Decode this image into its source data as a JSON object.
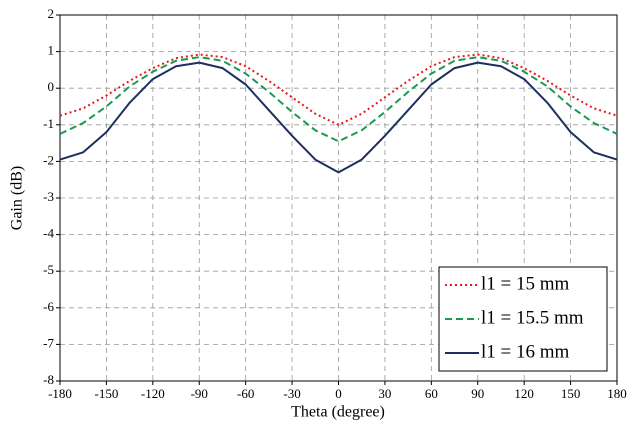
{
  "chart_data": {
    "type": "line",
    "x_label": "Theta (degree)",
    "y_label": "Gain (dB)",
    "x": [
      -180,
      -165,
      -150,
      -135,
      -120,
      -105,
      -90,
      -75,
      -60,
      -45,
      -30,
      -15,
      0,
      15,
      30,
      45,
      60,
      75,
      90,
      105,
      120,
      135,
      150,
      165,
      180
    ],
    "series": [
      {
        "name": "l1 = 15 mm",
        "color": "#e8161a",
        "dash": "2 3",
        "values": [
          -0.75,
          -0.55,
          -0.2,
          0.2,
          0.55,
          0.82,
          0.92,
          0.85,
          0.6,
          0.2,
          -0.25,
          -0.7,
          -1.0,
          -0.7,
          -0.25,
          0.2,
          0.6,
          0.85,
          0.92,
          0.82,
          0.55,
          0.2,
          -0.2,
          -0.55,
          -0.75
        ]
      },
      {
        "name": "l1 = 15.5 mm",
        "color": "#1a9a50",
        "dash": "7 4",
        "values": [
          -1.25,
          -0.95,
          -0.5,
          0.05,
          0.45,
          0.75,
          0.85,
          0.75,
          0.4,
          -0.1,
          -0.65,
          -1.15,
          -1.45,
          -1.15,
          -0.65,
          -0.1,
          0.4,
          0.75,
          0.85,
          0.75,
          0.45,
          0.05,
          -0.5,
          -0.95,
          -1.25
        ]
      },
      {
        "name": "l1 = 16 mm",
        "color": "#1c2f5e",
        "dash": "",
        "values": [
          -1.95,
          -1.75,
          -1.2,
          -0.4,
          0.25,
          0.6,
          0.7,
          0.55,
          0.1,
          -0.6,
          -1.3,
          -1.95,
          -2.3,
          -1.95,
          -1.3,
          -0.6,
          0.1,
          0.55,
          0.7,
          0.6,
          0.25,
          -0.4,
          -1.2,
          -1.75,
          -1.95
        ]
      }
    ],
    "xlim": [
      -180,
      180
    ],
    "xticks": [
      -180,
      -150,
      -120,
      -90,
      -60,
      -30,
      0,
      30,
      60,
      90,
      120,
      150,
      180
    ],
    "ylim": [
      -8,
      2
    ],
    "yticks": [
      -8,
      -7,
      -6,
      -5,
      -4,
      -3,
      -2,
      -1,
      0,
      1,
      2
    ],
    "grid": true,
    "legend": "lower right"
  }
}
